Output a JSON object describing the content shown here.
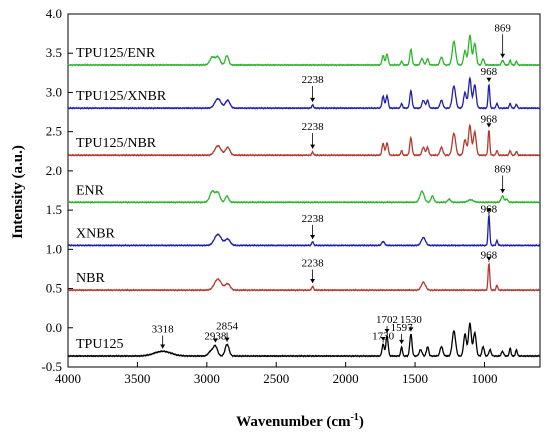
{
  "chart_data": {
    "type": "line",
    "xlabel": "Wavenumber (cm",
    "xlabel_sup": "-1",
    "xlabel_close": ")",
    "ylabel": "Intensity (a.u.)",
    "xlim": [
      4000,
      600
    ],
    "ylim": [
      -0.5,
      4.0
    ],
    "x_ticks": [
      "4000",
      "3500",
      "3000",
      "2500",
      "2000",
      "1500",
      "1000"
    ],
    "y_ticks": [
      "-0.5",
      "0.0",
      "0.5",
      "1.0",
      "1.5",
      "2.0",
      "2.5",
      "3.0",
      "3.5",
      "4.0"
    ],
    "grid": false,
    "series": [
      {
        "name": "TPU125",
        "color": "#000000",
        "baseline": -0.36,
        "peaks": [
          [
            3318,
            0.06,
            60
          ],
          [
            2970,
            0.06,
            18
          ],
          [
            2938,
            0.12,
            15
          ],
          [
            2854,
            0.15,
            14
          ],
          [
            1730,
            0.15,
            8
          ],
          [
            1702,
            0.26,
            8
          ],
          [
            1597,
            0.12,
            6
          ],
          [
            1530,
            0.28,
            8
          ],
          [
            1460,
            0.08,
            10
          ],
          [
            1410,
            0.12,
            8
          ],
          [
            1310,
            0.12,
            10
          ],
          [
            1220,
            0.32,
            12
          ],
          [
            1140,
            0.28,
            10
          ],
          [
            1105,
            0.42,
            10
          ],
          [
            1070,
            0.3,
            10
          ],
          [
            1010,
            0.12,
            8
          ],
          [
            960,
            0.08,
            8
          ],
          [
            870,
            0.06,
            8
          ],
          [
            815,
            0.1,
            6
          ],
          [
            770,
            0.08,
            6
          ]
        ],
        "annotations": [
          {
            "text": "3318",
            "x": 3318,
            "y": -0.06
          },
          {
            "text": "2938",
            "x": 2938,
            "y": -0.15
          },
          {
            "text": "2854",
            "x": 2854,
            "y": -0.02
          },
          {
            "text": "1730",
            "x": 1730,
            "y": -0.15
          },
          {
            "text": "1702",
            "x": 1702,
            "y": 0.06
          },
          {
            "text": "1597",
            "x": 1597,
            "y": -0.04
          },
          {
            "text": "1530",
            "x": 1530,
            "y": 0.06
          }
        ]
      },
      {
        "name": "NBR",
        "color": "#b03a2e",
        "baseline": 0.48,
        "peaks": [
          [
            2920,
            0.14,
            25
          ],
          [
            2850,
            0.08,
            18
          ],
          [
            2238,
            0.05,
            6
          ],
          [
            1440,
            0.1,
            15
          ],
          [
            968,
            0.34,
            6
          ],
          [
            910,
            0.06,
            6
          ]
        ],
        "annotations": [
          {
            "text": "2238",
            "x": 2238,
            "y": 0.78
          },
          {
            "text": "968",
            "x": 968,
            "y": 0.88
          }
        ]
      },
      {
        "name": "XNBR",
        "color": "#1f1fa8",
        "baseline": 1.05,
        "peaks": [
          [
            2920,
            0.14,
            25
          ],
          [
            2850,
            0.08,
            18
          ],
          [
            2238,
            0.05,
            6
          ],
          [
            1730,
            0.05,
            10
          ],
          [
            1440,
            0.1,
            15
          ],
          [
            968,
            0.38,
            6
          ],
          [
            910,
            0.06,
            6
          ]
        ],
        "annotations": [
          {
            "text": "2238",
            "x": 2238,
            "y": 1.35
          },
          {
            "text": "968",
            "x": 968,
            "y": 1.47
          }
        ]
      },
      {
        "name": "ENR",
        "color": "#2cb52c",
        "baseline": 1.6,
        "peaks": [
          [
            2960,
            0.14,
            18
          ],
          [
            2920,
            0.12,
            15
          ],
          [
            2855,
            0.08,
            12
          ],
          [
            1450,
            0.14,
            15
          ],
          [
            1375,
            0.08,
            10
          ],
          [
            1255,
            0.04,
            10
          ],
          [
            1100,
            0.03,
            20
          ],
          [
            870,
            0.08,
            10
          ],
          [
            840,
            0.04,
            8
          ]
        ],
        "annotations": [
          {
            "text": "869",
            "x": 869,
            "y": 1.98
          }
        ]
      },
      {
        "name": "TPU125/NBR",
        "color": "#b03a2e",
        "baseline": 2.2,
        "peaks": [
          [
            2920,
            0.12,
            22
          ],
          [
            2850,
            0.1,
            16
          ],
          [
            2238,
            0.04,
            6
          ],
          [
            1730,
            0.15,
            8
          ],
          [
            1702,
            0.16,
            8
          ],
          [
            1597,
            0.06,
            6
          ],
          [
            1530,
            0.22,
            8
          ],
          [
            1440,
            0.1,
            10
          ],
          [
            1410,
            0.1,
            8
          ],
          [
            1310,
            0.1,
            10
          ],
          [
            1220,
            0.28,
            12
          ],
          [
            1140,
            0.2,
            10
          ],
          [
            1105,
            0.38,
            10
          ],
          [
            1070,
            0.3,
            10
          ],
          [
            968,
            0.32,
            6
          ],
          [
            910,
            0.06,
            6
          ],
          [
            815,
            0.06,
            6
          ],
          [
            770,
            0.05,
            6
          ]
        ],
        "annotations": [
          {
            "text": "2238",
            "x": 2238,
            "y": 2.52
          },
          {
            "text": "968",
            "x": 968,
            "y": 2.62
          }
        ]
      },
      {
        "name": "TPU125/XNBR",
        "color": "#1f1fa8",
        "baseline": 2.8,
        "peaks": [
          [
            2920,
            0.12,
            22
          ],
          [
            2850,
            0.1,
            16
          ],
          [
            2238,
            0.04,
            6
          ],
          [
            1730,
            0.15,
            8
          ],
          [
            1702,
            0.16,
            8
          ],
          [
            1597,
            0.06,
            6
          ],
          [
            1530,
            0.22,
            8
          ],
          [
            1440,
            0.1,
            10
          ],
          [
            1410,
            0.1,
            8
          ],
          [
            1310,
            0.1,
            10
          ],
          [
            1220,
            0.28,
            12
          ],
          [
            1140,
            0.2,
            10
          ],
          [
            1105,
            0.38,
            10
          ],
          [
            1070,
            0.3,
            10
          ],
          [
            968,
            0.3,
            6
          ],
          [
            910,
            0.06,
            6
          ],
          [
            815,
            0.06,
            6
          ],
          [
            770,
            0.05,
            6
          ]
        ],
        "annotations": [
          {
            "text": "2238",
            "x": 2238,
            "y": 3.12
          },
          {
            "text": "968",
            "x": 968,
            "y": 3.22
          }
        ]
      },
      {
        "name": "TPU125/ENR",
        "color": "#2cb52c",
        "baseline": 3.35,
        "peaks": [
          [
            2960,
            0.1,
            18
          ],
          [
            2920,
            0.1,
            15
          ],
          [
            2855,
            0.12,
            12
          ],
          [
            1730,
            0.12,
            8
          ],
          [
            1702,
            0.14,
            8
          ],
          [
            1597,
            0.05,
            6
          ],
          [
            1530,
            0.2,
            8
          ],
          [
            1450,
            0.08,
            10
          ],
          [
            1410,
            0.08,
            8
          ],
          [
            1310,
            0.1,
            10
          ],
          [
            1220,
            0.3,
            12
          ],
          [
            1140,
            0.18,
            10
          ],
          [
            1105,
            0.38,
            10
          ],
          [
            1070,
            0.28,
            10
          ],
          [
            1010,
            0.08,
            8
          ],
          [
            869,
            0.06,
            8
          ],
          [
            815,
            0.06,
            6
          ],
          [
            770,
            0.05,
            6
          ]
        ],
        "annotations": [
          {
            "text": "869",
            "x": 869,
            "y": 3.78
          }
        ]
      }
    ]
  }
}
